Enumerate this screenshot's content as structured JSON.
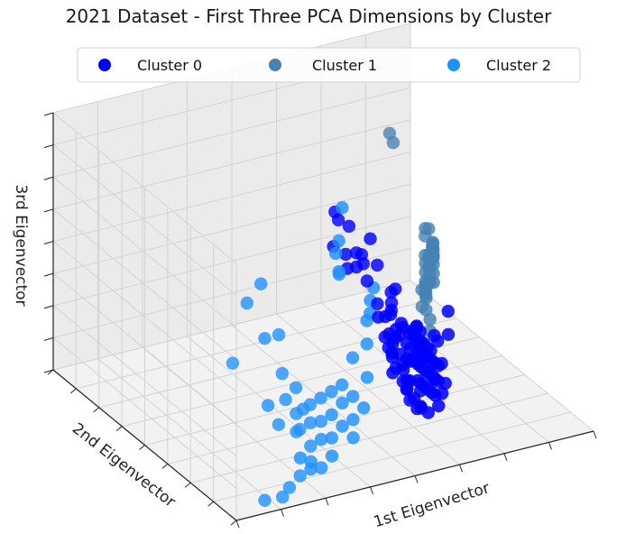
{
  "chart_data": {
    "type": "scatter",
    "projection": "3d",
    "title": "2021 Dataset - First Three PCA Dimensions by Cluster",
    "xlabel": "1st Eigenvector",
    "ylabel": "2nd Eigenvector",
    "zlabel": "3rd Eigenvector",
    "xlim": [
      0,
      1
    ],
    "ylim": [
      0,
      1
    ],
    "zlim": [
      0,
      1
    ],
    "grid": true,
    "tick_labels_shown": false,
    "legend_position": "top-center",
    "series": [
      {
        "name": "Cluster 0",
        "color": "#0000ff",
        "points": [
          [
            0.44,
            0.32,
            0.86
          ],
          [
            0.46,
            0.34,
            0.81
          ],
          [
            0.4,
            0.25,
            0.78
          ],
          [
            0.5,
            0.36,
            0.76
          ],
          [
            0.46,
            0.3,
            0.7
          ],
          [
            0.5,
            0.32,
            0.68
          ],
          [
            0.52,
            0.33,
            0.66
          ],
          [
            0.49,
            0.3,
            0.64
          ],
          [
            0.48,
            0.33,
            0.62
          ],
          [
            0.54,
            0.36,
            0.6
          ],
          [
            0.53,
            0.32,
            0.56
          ],
          [
            0.58,
            0.4,
            0.66
          ],
          [
            0.5,
            0.2,
            0.5
          ],
          [
            0.53,
            0.22,
            0.48
          ],
          [
            0.56,
            0.25,
            0.46
          ],
          [
            0.52,
            0.18,
            0.44
          ],
          [
            0.56,
            0.22,
            0.42
          ],
          [
            0.6,
            0.27,
            0.4
          ],
          [
            0.58,
            0.24,
            0.38
          ],
          [
            0.62,
            0.3,
            0.36
          ],
          [
            0.55,
            0.18,
            0.35
          ],
          [
            0.6,
            0.24,
            0.34
          ],
          [
            0.64,
            0.3,
            0.33
          ],
          [
            0.58,
            0.2,
            0.31
          ],
          [
            0.62,
            0.26,
            0.3
          ],
          [
            0.66,
            0.32,
            0.3
          ],
          [
            0.61,
            0.22,
            0.28
          ],
          [
            0.65,
            0.28,
            0.27
          ],
          [
            0.69,
            0.34,
            0.26
          ],
          [
            0.63,
            0.24,
            0.25
          ],
          [
            0.67,
            0.3,
            0.24
          ],
          [
            0.71,
            0.36,
            0.23
          ],
          [
            0.6,
            0.18,
            0.23
          ],
          [
            0.65,
            0.26,
            0.22
          ],
          [
            0.69,
            0.32,
            0.21
          ],
          [
            0.62,
            0.2,
            0.2
          ],
          [
            0.67,
            0.28,
            0.19
          ],
          [
            0.71,
            0.34,
            0.19
          ],
          [
            0.64,
            0.22,
            0.17
          ],
          [
            0.69,
            0.3,
            0.16
          ],
          [
            0.73,
            0.36,
            0.16
          ],
          [
            0.66,
            0.24,
            0.14
          ],
          [
            0.71,
            0.32,
            0.13
          ],
          [
            0.75,
            0.38,
            0.13
          ],
          [
            0.68,
            0.26,
            0.11
          ],
          [
            0.73,
            0.34,
            0.1
          ],
          [
            0.77,
            0.4,
            0.1
          ],
          [
            0.7,
            0.28,
            0.08
          ],
          [
            0.75,
            0.36,
            0.07
          ],
          [
            0.79,
            0.42,
            0.09
          ],
          [
            0.74,
            0.32,
            0.05
          ],
          [
            0.78,
            0.38,
            0.04
          ],
          [
            0.57,
            0.2,
            0.27
          ],
          [
            0.59,
            0.22,
            0.21
          ],
          [
            0.62,
            0.28,
            0.13
          ],
          [
            0.64,
            0.3,
            0.07
          ],
          [
            0.66,
            0.3,
            0.03
          ],
          [
            0.68,
            0.32,
            0.02
          ],
          [
            0.71,
            0.4,
            0.22
          ],
          [
            0.73,
            0.42,
            0.18
          ],
          [
            0.76,
            0.44,
            0.15
          ],
          [
            0.78,
            0.46,
            0.12
          ],
          [
            0.7,
            0.38,
            0.28
          ],
          [
            0.72,
            0.42,
            0.26
          ],
          [
            0.74,
            0.44,
            0.22
          ],
          [
            0.8,
            0.48,
            0.16
          ],
          [
            0.82,
            0.5,
            0.12
          ],
          [
            0.56,
            0.24,
            0.3
          ],
          [
            0.54,
            0.2,
            0.38
          ],
          [
            0.58,
            0.26,
            0.24
          ],
          [
            0.6,
            0.26,
            0.18
          ],
          [
            0.67,
            0.36,
            0.1
          ],
          [
            0.7,
            0.36,
            0.05
          ],
          [
            0.63,
            0.32,
            0.2
          ],
          [
            0.68,
            0.38,
            0.16
          ],
          [
            0.52,
            0.16,
            0.3
          ],
          [
            0.55,
            0.14,
            0.24
          ],
          [
            0.58,
            0.16,
            0.18
          ],
          [
            0.61,
            0.18,
            0.12
          ],
          [
            0.64,
            0.2,
            0.08
          ],
          [
            0.72,
            0.3,
            0.02
          ],
          [
            0.76,
            0.4,
            0.05
          ],
          [
            0.6,
            0.4,
            0.4
          ],
          [
            0.66,
            0.44,
            0.36
          ],
          [
            0.68,
            0.48,
            0.3
          ],
          [
            0.74,
            0.48,
            0.2
          ],
          [
            0.77,
            0.52,
            0.18
          ],
          [
            0.65,
            0.4,
            0.44
          ],
          [
            0.62,
            0.44,
            0.52
          ],
          [
            0.7,
            0.52,
            0.34
          ],
          [
            0.86,
            0.52,
            0.12
          ],
          [
            0.88,
            0.56,
            0.18
          ],
          [
            0.57,
            0.3,
            0.34
          ],
          [
            0.59,
            0.32,
            0.28
          ],
          [
            0.61,
            0.34,
            0.24
          ],
          [
            0.63,
            0.36,
            0.28
          ]
        ]
      },
      {
        "name": "Cluster 1",
        "color": "#4682b4",
        "points": [
          [
            0.87,
            0.86,
            0.7
          ],
          [
            0.88,
            0.86,
            0.66
          ],
          [
            0.87,
            0.62,
            0.26
          ],
          [
            0.88,
            0.64,
            0.28
          ],
          [
            0.89,
            0.66,
            0.3
          ],
          [
            0.9,
            0.68,
            0.32
          ],
          [
            0.91,
            0.7,
            0.3
          ],
          [
            0.92,
            0.72,
            0.28
          ],
          [
            0.93,
            0.74,
            0.3
          ],
          [
            0.94,
            0.76,
            0.28
          ],
          [
            0.95,
            0.78,
            0.26
          ],
          [
            0.96,
            0.8,
            0.28
          ],
          [
            0.97,
            0.82,
            0.26
          ],
          [
            0.98,
            0.84,
            0.24
          ],
          [
            0.99,
            0.86,
            0.22
          ],
          [
            1.0,
            0.88,
            0.2
          ],
          [
            0.96,
            0.82,
            0.22
          ],
          [
            0.97,
            0.84,
            0.2
          ],
          [
            0.98,
            0.86,
            0.18
          ],
          [
            0.95,
            0.8,
            0.18
          ],
          [
            0.94,
            0.78,
            0.2
          ],
          [
            0.93,
            0.76,
            0.22
          ],
          [
            0.92,
            0.74,
            0.24
          ],
          [
            0.91,
            0.72,
            0.22
          ],
          [
            0.9,
            0.7,
            0.2
          ],
          [
            0.89,
            0.68,
            0.22
          ],
          [
            0.91,
            0.74,
            0.16
          ],
          [
            0.93,
            0.78,
            0.14
          ],
          [
            0.95,
            0.82,
            0.12
          ],
          [
            0.96,
            0.84,
            0.14
          ],
          [
            0.97,
            0.86,
            0.16
          ],
          [
            0.94,
            0.8,
            0.1
          ],
          [
            0.92,
            0.76,
            0.12
          ],
          [
            0.9,
            0.72,
            0.14
          ],
          [
            0.88,
            0.68,
            0.16
          ],
          [
            0.89,
            0.7,
            0.1
          ],
          [
            0.99,
            0.9,
            0.16
          ],
          [
            1.0,
            0.92,
            0.22
          ],
          [
            1.0,
            0.9,
            0.26
          ],
          [
            0.98,
            0.88,
            0.28
          ],
          [
            0.86,
            0.62,
            0.12
          ],
          [
            0.87,
            0.64,
            0.06
          ],
          [
            0.93,
            0.8,
            0.04
          ],
          [
            0.96,
            0.86,
            0.06
          ]
        ]
      },
      {
        "name": "Cluster 2",
        "color": "#1e90ff",
        "points": [
          [
            0.44,
            0.28,
            0.9
          ],
          [
            0.4,
            0.22,
            0.82
          ],
          [
            0.36,
            0.16,
            0.82
          ],
          [
            0.38,
            0.18,
            0.72
          ],
          [
            0.4,
            0.22,
            0.7
          ],
          [
            0.04,
            0.02,
            0.82
          ],
          [
            0.12,
            0.1,
            0.82
          ],
          [
            0.1,
            0.04,
            0.65
          ],
          [
            0.16,
            0.08,
            0.62
          ],
          [
            0.0,
            0.02,
            0.6
          ],
          [
            0.2,
            0.14,
            0.42
          ],
          [
            0.14,
            0.1,
            0.34
          ],
          [
            0.22,
            0.16,
            0.3
          ],
          [
            0.26,
            0.18,
            0.22
          ],
          [
            0.3,
            0.22,
            0.2
          ],
          [
            0.34,
            0.26,
            0.18
          ],
          [
            0.38,
            0.28,
            0.18
          ],
          [
            0.42,
            0.3,
            0.18
          ],
          [
            0.46,
            0.32,
            0.18
          ],
          [
            0.28,
            0.2,
            0.14
          ],
          [
            0.32,
            0.22,
            0.14
          ],
          [
            0.36,
            0.24,
            0.12
          ],
          [
            0.4,
            0.26,
            0.12
          ],
          [
            0.44,
            0.28,
            0.14
          ],
          [
            0.48,
            0.3,
            0.14
          ],
          [
            0.3,
            0.18,
            0.08
          ],
          [
            0.34,
            0.2,
            0.08
          ],
          [
            0.38,
            0.22,
            0.06
          ],
          [
            0.42,
            0.24,
            0.08
          ],
          [
            0.46,
            0.26,
            0.08
          ],
          [
            0.5,
            0.28,
            0.1
          ],
          [
            0.24,
            0.12,
            0.02
          ],
          [
            0.28,
            0.14,
            0.02
          ],
          [
            0.32,
            0.16,
            0.0
          ],
          [
            0.2,
            0.1,
            0.0
          ],
          [
            0.16,
            0.06,
            0.0
          ],
          [
            0.1,
            0.04,
            0.02
          ],
          [
            0.26,
            0.1,
            0.08
          ],
          [
            0.22,
            0.08,
            0.12
          ],
          [
            0.36,
            0.18,
            0.02
          ],
          [
            0.44,
            0.22,
            0.04
          ],
          [
            0.52,
            0.3,
            0.2
          ],
          [
            0.54,
            0.34,
            0.3
          ],
          [
            0.56,
            0.38,
            0.36
          ],
          [
            0.58,
            0.4,
            0.42
          ],
          [
            0.62,
            0.46,
            0.42
          ],
          [
            0.24,
            0.14,
            0.18
          ],
          [
            0.18,
            0.12,
            0.24
          ],
          [
            0.3,
            0.26,
            0.26
          ],
          [
            0.5,
            0.34,
            0.26
          ],
          [
            0.6,
            0.44,
            0.34
          ]
        ]
      }
    ]
  }
}
